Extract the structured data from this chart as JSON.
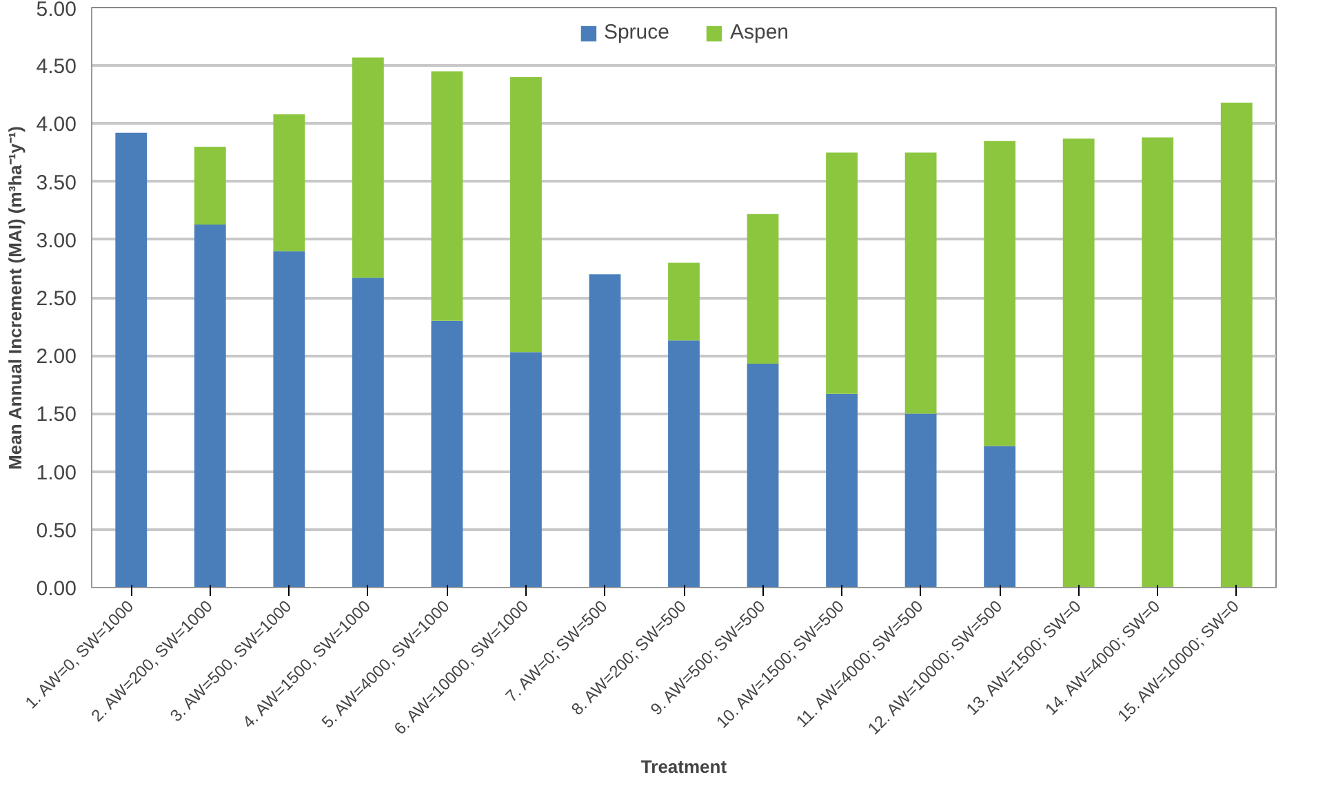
{
  "chart_data": {
    "type": "bar",
    "stacked": true,
    "xlabel": "Treatment",
    "ylabel": "Mean Annual Increment (MAI) (m³ha⁻¹y⁻¹)",
    "categories": [
      "1. AW=0, SW=1000",
      "2. AW=200, SW=1000",
      "3. AW=500, SW=1000",
      "4. AW=1500, SW=1000",
      "5. AW=4000, SW=1000",
      "6. AW=10000, SW=1000",
      "7. AW=0; SW=500",
      "8. AW=200; SW=500",
      "9. AW=500; SW=500",
      "10. AW=1500; SW=500",
      "11. AW=4000; SW=500",
      "12. AW=10000; SW=500",
      "13. AW=1500; SW=0",
      "14. AW=4000; SW=0",
      "15. AW=10000; SW=0"
    ],
    "series": [
      {
        "name": "Spruce",
        "color": "#4a7ebb",
        "values": [
          3.92,
          3.13,
          2.9,
          2.67,
          2.3,
          2.03,
          2.7,
          2.13,
          1.93,
          1.67,
          1.5,
          1.22,
          0,
          0,
          0
        ]
      },
      {
        "name": "Aspen",
        "color": "#8cc63f",
        "values": [
          0,
          0.67,
          1.18,
          1.9,
          2.15,
          2.37,
          0,
          0.67,
          1.29,
          2.08,
          2.25,
          2.63,
          3.87,
          3.88,
          4.18
        ]
      }
    ],
    "ylim": [
      0,
      5
    ],
    "yticks": [
      {
        "value": 0,
        "label": "0.00"
      },
      {
        "value": 0.5,
        "label": "0.50"
      },
      {
        "value": 1,
        "label": "1.00"
      },
      {
        "value": 1.5,
        "label": "1.50"
      },
      {
        "value": 2,
        "label": "2.00"
      },
      {
        "value": 2.5,
        "label": "2.50"
      },
      {
        "value": 3,
        "label": "3.00"
      },
      {
        "value": 3.5,
        "label": "3.50"
      },
      {
        "value": 4,
        "label": "4.00"
      },
      {
        "value": 4.5,
        "label": "4.50"
      },
      {
        "value": 5,
        "label": "5.00"
      }
    ],
    "grid": "y",
    "legend": "top"
  }
}
